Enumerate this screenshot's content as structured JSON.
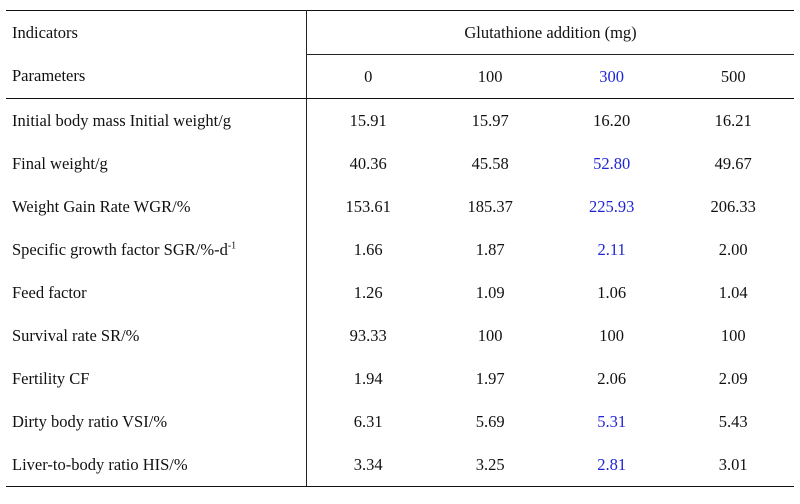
{
  "table": {
    "header": {
      "indicators": "Indicators",
      "group": "Glutathione addition (mg)"
    },
    "columns": [
      "Parameters",
      "0",
      "100",
      "300",
      "500"
    ],
    "rows": [
      [
        "Initial body mass Initial weight/g",
        "15.91",
        "15.97",
        "16.20",
        "16.21"
      ],
      [
        "Final weight/g",
        "40.36",
        "45.58",
        "52.80",
        "49.67"
      ],
      [
        "Weight Gain Rate WGR/%",
        "153.61",
        "185.37",
        "225.93",
        "206.33"
      ],
      [
        {
          "text": "Specific growth factor SGR/%-d",
          "sup": "-1"
        },
        "1.66",
        "1.87",
        "2.11",
        "2.00"
      ],
      [
        "Feed factor",
        "1.26",
        "1.09",
        "1.06",
        "1.04"
      ],
      [
        "Survival rate SR/%",
        "93.33",
        "100",
        "100",
        "100"
      ],
      [
        "Fertility CF",
        "1.94",
        "1.97",
        "2.06",
        "2.09"
      ],
      [
        "Dirty body ratio VSI/%",
        "6.31",
        "5.69",
        "5.31",
        "5.43"
      ],
      [
        "Liver-to-body ratio HIS/%",
        "3.34",
        "3.25",
        "2.81",
        "3.01"
      ]
    ]
  }
}
